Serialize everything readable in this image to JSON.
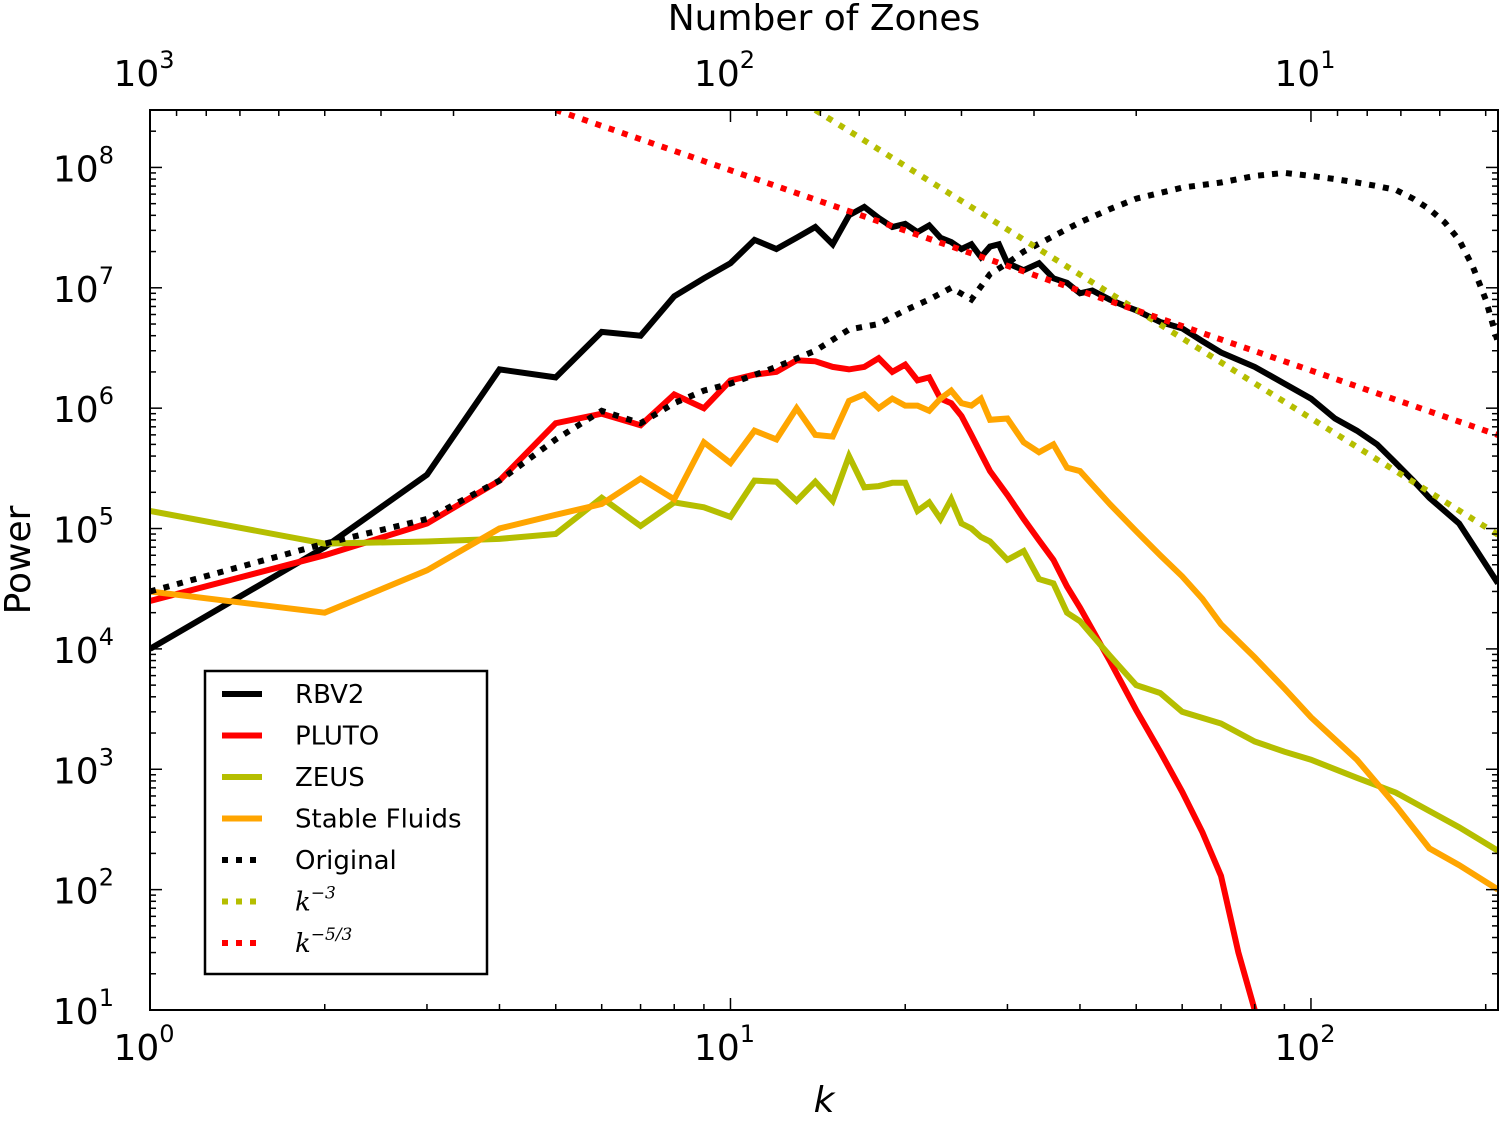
{
  "chart_data": {
    "type": "line",
    "xscale": "log",
    "yscale": "log",
    "xlabel": "k",
    "ylabel": "Power",
    "top_axis_label": "Number of Zones",
    "xlim": [
      1,
      210
    ],
    "ylim": [
      10,
      300000000
    ],
    "x_ticks": [
      {
        "value": 1,
        "base": "10",
        "exp": "0"
      },
      {
        "value": 10,
        "base": "10",
        "exp": "1"
      },
      {
        "value": 100,
        "base": "10",
        "exp": "2"
      }
    ],
    "y_ticks": [
      {
        "value": 10,
        "base": "10",
        "exp": "1"
      },
      {
        "value": 100,
        "base": "10",
        "exp": "2"
      },
      {
        "value": 1000,
        "base": "10",
        "exp": "3"
      },
      {
        "value": 10000,
        "base": "10",
        "exp": "4"
      },
      {
        "value": 100000,
        "base": "10",
        "exp": "5"
      },
      {
        "value": 1000000,
        "base": "10",
        "exp": "6"
      },
      {
        "value": 10000000,
        "base": "10",
        "exp": "7"
      },
      {
        "value": 100000000,
        "base": "10",
        "exp": "8"
      }
    ],
    "top_ticks": [
      {
        "zones": 1000,
        "base": "10",
        "exp": "3"
      },
      {
        "zones": 100,
        "base": "10",
        "exp": "2"
      },
      {
        "zones": 10,
        "base": "10",
        "exp": "1"
      }
    ],
    "top_axis_mapping": "zones = 1000 / k",
    "series": [
      {
        "name": "RBV2",
        "color": "#000000",
        "style": "solid",
        "x": [
          1,
          2,
          3,
          4,
          5,
          6,
          7,
          8,
          9,
          10,
          11,
          12,
          13,
          14,
          15,
          16,
          17,
          18,
          19,
          20,
          21,
          22,
          23,
          24,
          25,
          26,
          27,
          28,
          29,
          30,
          32,
          34,
          36,
          38,
          40,
          42,
          45,
          48,
          50,
          55,
          60,
          65,
          70,
          80,
          90,
          100,
          110,
          120,
          130,
          140,
          150,
          160,
          180,
          210
        ],
        "y": [
          10000,
          70000,
          280000,
          2100000,
          1800000,
          4300000,
          4000000,
          8500000,
          12000000,
          16000000,
          25000000,
          21000000,
          26000000,
          32000000,
          23000000,
          40000000,
          47000000,
          38000000,
          32000000,
          34000000,
          29000000,
          33000000,
          26000000,
          24000000,
          21000000,
          23000000,
          18000000,
          22000000,
          23000000,
          16000000,
          14000000,
          16000000,
          12000000,
          11000000,
          9000000,
          9500000,
          8000000,
          7000000,
          6500000,
          5200000,
          4600000,
          3600000,
          2900000,
          2200000,
          1600000,
          1200000,
          820000,
          650000,
          500000,
          350000,
          250000,
          180000,
          110000,
          35000
        ]
      },
      {
        "name": "PLUTO",
        "color": "#ff0000",
        "style": "solid",
        "x": [
          1,
          2,
          3,
          4,
          5,
          6,
          7,
          8,
          9,
          10,
          11,
          12,
          13,
          14,
          15,
          16,
          17,
          18,
          19,
          20,
          21,
          22,
          23,
          24,
          25,
          26,
          27,
          28,
          30,
          32,
          34,
          36,
          38,
          40,
          45,
          50,
          55,
          60,
          65,
          70,
          75,
          80
        ],
        "y": [
          25000,
          60000,
          110000,
          250000,
          750000,
          900000,
          720000,
          1300000,
          1000000,
          1700000,
          1900000,
          2000000,
          2500000,
          2450000,
          2200000,
          2100000,
          2200000,
          2600000,
          2000000,
          2300000,
          1700000,
          1800000,
          1200000,
          1100000,
          860000,
          600000,
          420000,
          300000,
          190000,
          120000,
          80000,
          55000,
          33000,
          22000,
          8000,
          3100,
          1400,
          650,
          300,
          130,
          30,
          10
        ]
      },
      {
        "name": "ZEUS",
        "color": "#b5be00",
        "style": "solid",
        "x": [
          1,
          2,
          3,
          4,
          5,
          6,
          7,
          8,
          9,
          10,
          11,
          12,
          13,
          14,
          15,
          16,
          17,
          18,
          19,
          20,
          21,
          22,
          23,
          24,
          25,
          26,
          27,
          28,
          30,
          32,
          34,
          36,
          38,
          40,
          45,
          50,
          55,
          60,
          70,
          80,
          90,
          100,
          120,
          140,
          160,
          180,
          210
        ],
        "y": [
          140000,
          75000,
          78000,
          82000,
          90000,
          180000,
          105000,
          165000,
          150000,
          125000,
          250000,
          245000,
          170000,
          245000,
          170000,
          400000,
          220000,
          225000,
          240000,
          240000,
          140000,
          165000,
          120000,
          175000,
          110000,
          100000,
          85000,
          78000,
          55000,
          65000,
          38000,
          35000,
          20000,
          17000,
          8800,
          5000,
          4300,
          3000,
          2400,
          1700,
          1400,
          1200,
          850,
          640,
          450,
          330,
          210
        ]
      },
      {
        "name": "Stable Fluids",
        "color": "#ffa500",
        "style": "solid",
        "x": [
          1,
          2,
          3,
          4,
          5,
          6,
          7,
          8,
          9,
          10,
          11,
          12,
          13,
          14,
          15,
          16,
          17,
          18,
          19,
          20,
          21,
          22,
          23,
          24,
          25,
          26,
          27,
          28,
          30,
          32,
          34,
          36,
          38,
          40,
          45,
          50,
          55,
          60,
          65,
          70,
          80,
          90,
          100,
          120,
          140,
          160,
          180,
          210
        ],
        "y": [
          30000,
          20000,
          45000,
          100000,
          130000,
          160000,
          260000,
          175000,
          520000,
          350000,
          650000,
          550000,
          1000000,
          600000,
          580000,
          1150000,
          1300000,
          1000000,
          1200000,
          1050000,
          1050000,
          950000,
          1200000,
          1400000,
          1100000,
          1050000,
          1200000,
          800000,
          820000,
          520000,
          430000,
          500000,
          320000,
          300000,
          160000,
          95000,
          60000,
          40000,
          26000,
          16000,
          8500,
          4700,
          2700,
          1200,
          500,
          220,
          160,
          100
        ]
      },
      {
        "name": "Original",
        "color": "#000000",
        "style": "dotted",
        "x": [
          1,
          2,
          3,
          4,
          5,
          6,
          7,
          8,
          9,
          10,
          12,
          14,
          16,
          18,
          20,
          22,
          24,
          26,
          28,
          30,
          32,
          35,
          40,
          45,
          50,
          60,
          70,
          80,
          90,
          100,
          110,
          120,
          130,
          140,
          150,
          160,
          170,
          180,
          190,
          200,
          210
        ],
        "y": [
          30000,
          75000,
          120000,
          250000,
          550000,
          950000,
          750000,
          1100000,
          1400000,
          1600000,
          2200000,
          3000000,
          4500000,
          5000000,
          6500000,
          8000000,
          10000000,
          8000000,
          13000000,
          16000000,
          20000000,
          25000000,
          35000000,
          45000000,
          55000000,
          68000000,
          75000000,
          85000000,
          90000000,
          85000000,
          80000000,
          75000000,
          70000000,
          65000000,
          55000000,
          45000000,
          35000000,
          25000000,
          15000000,
          8000000,
          3500000
        ]
      },
      {
        "name": "k^-3",
        "color": "#b5be00",
        "style": "dotted",
        "x": [
          14,
          210
        ],
        "y": [
          300000000,
          88888
        ]
      },
      {
        "name": "k^-5/3",
        "color": "#ff0000",
        "style": "dotted",
        "x": [
          5,
          210
        ],
        "y": [
          300000000,
          599000
        ]
      }
    ],
    "legend": {
      "placement": "lower-left",
      "entries": [
        {
          "label": "RBV2"
        },
        {
          "label": "PLUTO"
        },
        {
          "label": "ZEUS"
        },
        {
          "label": "Stable Fluids"
        },
        {
          "label": "Original"
        },
        {
          "base": "k",
          "exp": "−3"
        },
        {
          "base": "k",
          "exp": "−5/3"
        }
      ]
    }
  }
}
